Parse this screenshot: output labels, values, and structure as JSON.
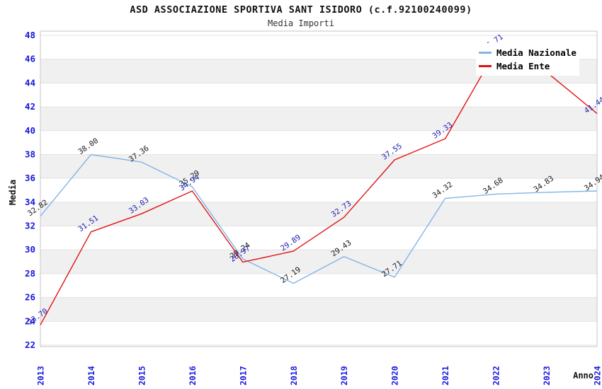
{
  "title": "ASD ASSOCIAZIONE SPORTIVA SANT ISIDORO (c.f.92100240099)",
  "subtitle": "Media Importi",
  "axes": {
    "y_label": "Media",
    "x_label": "Anno",
    "y_ticks": [
      48,
      46,
      44,
      42,
      40,
      38,
      36,
      34,
      32,
      30,
      28,
      26,
      24,
      22
    ],
    "x_ticks": [
      "2013",
      "2014",
      "2015",
      "2016",
      "2017",
      "2018",
      "2019",
      "2020",
      "2021",
      "2022",
      "2023",
      "2024"
    ]
  },
  "legend": {
    "items": [
      {
        "label": "Media Nazionale",
        "color": "#82B4E8"
      },
      {
        "label": "Media Ente",
        "color": "#E01212"
      }
    ]
  },
  "colors": {
    "band": "#f0f0f0",
    "grid": "#e2e2e2",
    "border": "#c6c6c6",
    "tick_text": "#1616dd",
    "axis_text": "#111111"
  },
  "chart_data": {
    "type": "line",
    "title": "ASD ASSOCIAZIONE SPORTIVA SANT ISIDORO (c.f.92100240099)",
    "subtitle": "Media Importi",
    "xlabel": "Anno",
    "ylabel": "Media",
    "ylim": [
      22,
      48
    ],
    "grid": true,
    "legend_position": "top-right-inside",
    "categories": [
      2013,
      2014,
      2015,
      2016,
      2017,
      2018,
      2019,
      2020,
      2021,
      2022,
      2023,
      2024
    ],
    "series": [
      {
        "name": "Media Nazionale",
        "color": "#82B4E8",
        "label_color": "#1a1a1a",
        "values": [
          32.82,
          38.0,
          37.36,
          35.29,
          29.24,
          27.19,
          29.43,
          27.71,
          34.32,
          34.68,
          34.83,
          34.94
        ],
        "hidden_label_indices": []
      },
      {
        "name": "Media Ente",
        "color": "#E01212",
        "label_color": "#2020b0",
        "values": [
          23.7,
          31.51,
          33.03,
          34.94,
          28.97,
          29.89,
          32.73,
          37.55,
          39.33,
          46.71,
          44.93,
          41.44
        ],
        "hidden_label_indices": [
          10
        ]
      }
    ]
  }
}
